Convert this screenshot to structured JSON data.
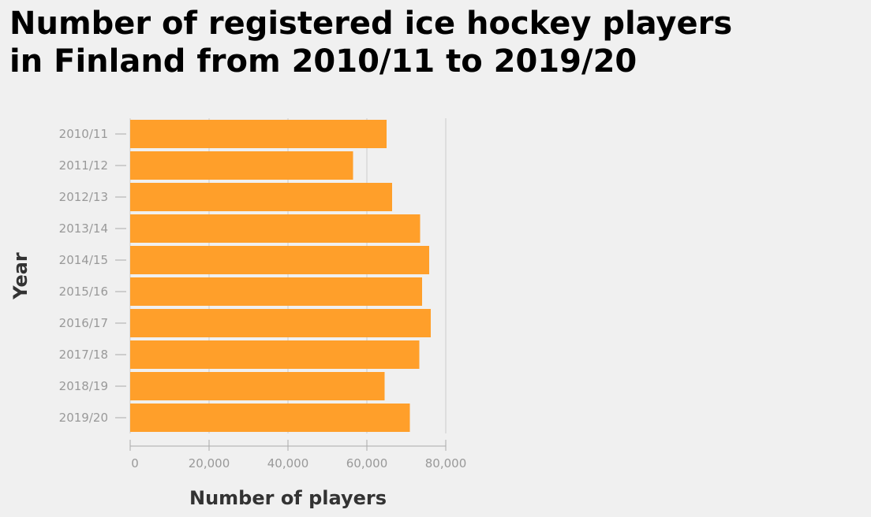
{
  "title_lines": [
    "Number of registered ice hockey players",
    "in Finland from 2010/11 to 2019/20"
  ],
  "chart_data": {
    "type": "bar",
    "orientation": "horizontal",
    "title": "Number of registered ice hockey players in Finland from 2010/11 to 2019/20",
    "xlabel": "Number of players",
    "ylabel": "Year",
    "categories": [
      "2010/11",
      "2011/12",
      "2012/13",
      "2013/14",
      "2014/15",
      "2015/16",
      "2016/17",
      "2017/18",
      "2018/19",
      "2019/20"
    ],
    "values": [
      65000,
      56500,
      66400,
      73500,
      75800,
      74000,
      76200,
      73300,
      64500,
      70900
    ],
    "xlim": [
      0,
      80000
    ],
    "xticks": [
      0,
      20000,
      40000,
      60000,
      80000
    ],
    "xtick_labels": [
      "0",
      "20,000",
      "40,000",
      "60,000",
      "80,000"
    ],
    "grid": true,
    "bar_color": "#ff9f2a"
  }
}
